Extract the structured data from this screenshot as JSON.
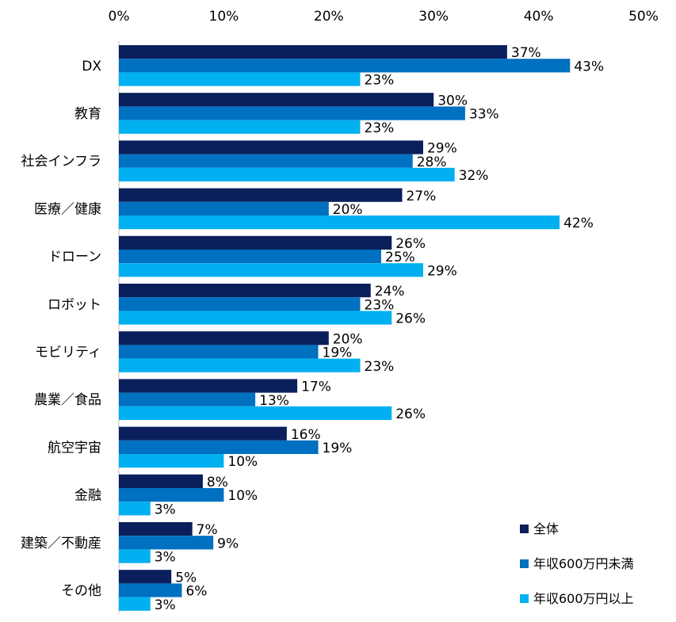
{
  "chart_data": {
    "type": "bar",
    "orientation": "horizontal",
    "title": "",
    "xlabel": "",
    "ylabel": "",
    "xlim": [
      0,
      50
    ],
    "ticks": [
      "0%",
      "10%",
      "20%",
      "30%",
      "40%",
      "50%"
    ],
    "grid": false,
    "legend_position": "bottom-right",
    "categories": [
      "DX",
      "教育",
      "社会インフラ",
      "医療／健康",
      "ドローン",
      "ロボット",
      "モビリティ",
      "農業／食品",
      "航空宇宙",
      "金融",
      "建築／不動産",
      "その他"
    ],
    "series": [
      {
        "name": "全体",
        "color": "#0a1f5c",
        "values": [
          37,
          30,
          29,
          27,
          26,
          24,
          20,
          17,
          16,
          8,
          7,
          5
        ]
      },
      {
        "name": "年収600万円未満",
        "color": "#0070c0",
        "values": [
          43,
          33,
          28,
          20,
          25,
          23,
          19,
          13,
          19,
          10,
          9,
          6
        ]
      },
      {
        "name": "年収600万円以上",
        "color": "#00b0f0",
        "values": [
          23,
          23,
          32,
          42,
          29,
          26,
          23,
          26,
          10,
          3,
          3,
          3
        ]
      }
    ],
    "value_suffix": "%"
  }
}
